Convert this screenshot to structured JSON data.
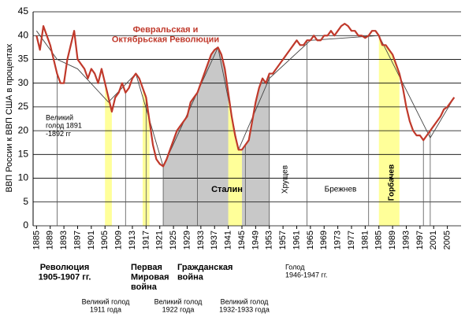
{
  "chart_data": {
    "type": "line",
    "y_label": "ВВП России к ВВП США в процентах",
    "x": [
      1885,
      1886,
      1887,
      1888,
      1889,
      1890,
      1891,
      1892,
      1893,
      1894,
      1895,
      1896,
      1897,
      1898,
      1899,
      1900,
      1901,
      1902,
      1903,
      1904,
      1905,
      1906,
      1907,
      1908,
      1909,
      1910,
      1911,
      1912,
      1913,
      1914,
      1915,
      1916,
      1917,
      1918,
      1919,
      1920,
      1921,
      1922,
      1923,
      1924,
      1925,
      1926,
      1927,
      1928,
      1929,
      1930,
      1931,
      1932,
      1933,
      1934,
      1935,
      1936,
      1937,
      1938,
      1939,
      1940,
      1941,
      1942,
      1943,
      1944,
      1945,
      1946,
      1947,
      1948,
      1949,
      1950,
      1951,
      1952,
      1953,
      1954,
      1955,
      1956,
      1957,
      1958,
      1959,
      1960,
      1961,
      1962,
      1963,
      1964,
      1965,
      1966,
      1967,
      1968,
      1969,
      1970,
      1971,
      1972,
      1973,
      1974,
      1975,
      1976,
      1977,
      1978,
      1979,
      1980,
      1981,
      1982,
      1983,
      1984,
      1985,
      1986,
      1987,
      1988,
      1989,
      1990,
      1991,
      1992,
      1993,
      1994,
      1995,
      1996,
      1997,
      1998,
      1999,
      2000,
      2001,
      2002,
      2003,
      2004,
      2005,
      2006,
      2007
    ],
    "series": [
      {
        "color": "#c0392b",
        "values": [
          40,
          37,
          42,
          40,
          38,
          35,
          32,
          30,
          30,
          35,
          38,
          41,
          35,
          34,
          33,
          31,
          33,
          32,
          30,
          33,
          30,
          27,
          24,
          27,
          28,
          30,
          28,
          29,
          31,
          32,
          31,
          29,
          27,
          22,
          17,
          14,
          13,
          12.5,
          14,
          16,
          18,
          20,
          21,
          22,
          23,
          26,
          27,
          28,
          30,
          32,
          34,
          36,
          37,
          37.5,
          36,
          33,
          28,
          23,
          19,
          16,
          16,
          17,
          18,
          22,
          26,
          29,
          31,
          30,
          32,
          32,
          33,
          34,
          35,
          36,
          37,
          38,
          39,
          38,
          38,
          39,
          39,
          40,
          39,
          39,
          40,
          40,
          41,
          40,
          41,
          42,
          42.5,
          42,
          41,
          41,
          40,
          40,
          39.5,
          40,
          41,
          41,
          40,
          38,
          38,
          37,
          36,
          34,
          32,
          29,
          25,
          22,
          20,
          19,
          19,
          18,
          19,
          20,
          21,
          22,
          23,
          24.5,
          25,
          26,
          27
        ]
      }
    ],
    "trend": {
      "color": "#444444",
      "x": [
        1885,
        1891,
        1897,
        1906,
        1914,
        1922,
        1938,
        1944,
        1953,
        1965,
        1985,
        2000,
        2007
      ],
      "values": [
        41,
        35,
        33,
        26,
        32,
        12.5,
        37.5,
        16,
        31,
        39,
        40,
        18.5,
        27
      ]
    },
    "stalin_period": [
      1922,
      1953
    ],
    "highlight_periods": [
      [
        1905,
        1907
      ],
      [
        1916,
        1918
      ],
      [
        1941,
        1945
      ],
      [
        1985,
        1991
      ]
    ],
    "marker_years": [
      1891,
      1911,
      1917,
      1922,
      1932,
      1946,
      1953,
      1964,
      1982,
      1998,
      2000
    ],
    "xlim": [
      1884,
      2009
    ],
    "ylim": [
      0,
      45
    ],
    "xticks": [
      1885,
      1889,
      1893,
      1897,
      1901,
      1905,
      1909,
      1913,
      1917,
      1921,
      1925,
      1929,
      1933,
      1937,
      1941,
      1945,
      1949,
      1953,
      1957,
      1961,
      1965,
      1969,
      1973,
      1977,
      1981,
      1985,
      1989,
      1993,
      1997,
      2001,
      2005
    ],
    "yticks": [
      0,
      5,
      10,
      15,
      20,
      25,
      30,
      35,
      40,
      45
    ],
    "grid": true,
    "annotations": [
      {
        "lines": [
          "Февральская и",
          "Октябрьская Революции"
        ]
      },
      {
        "lines": [
          "Великий",
          "голод 1891",
          "-1892 гг"
        ]
      },
      {
        "lines": [
          "Сталин"
        ]
      },
      {
        "lines": [
          "Хрущев"
        ]
      },
      {
        "lines": [
          "Брежнев"
        ]
      },
      {
        "lines": [
          "Горбачев"
        ]
      },
      {
        "lines": [
          "Революция",
          "1905-1907 гг."
        ]
      },
      {
        "lines": [
          "Первая",
          "Мировая",
          "война"
        ]
      },
      {
        "lines": [
          "Гражданская",
          "война"
        ]
      },
      {
        "lines": [
          "Голод",
          "1946-1947 гг."
        ]
      },
      {
        "lines": [
          "Великий голод",
          "1911 года"
        ]
      },
      {
        "lines": [
          "Великий голод",
          "1922 года"
        ]
      },
      {
        "lines": [
          "Великий голод",
          "1932-1933 года"
        ]
      }
    ]
  }
}
